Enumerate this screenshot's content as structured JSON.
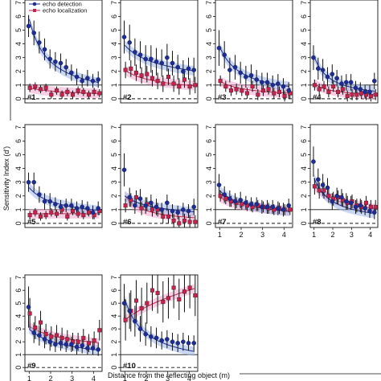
{
  "chart_data": {
    "type": "scatter",
    "xlabel": "Distance from the reflecting object (m)",
    "ylabel": "Sensitivity Index (d')",
    "xlim": [
      0.8,
      4.4
    ],
    "ylim": [
      -0.3,
      7.2
    ],
    "xticks": [
      1,
      2,
      3,
      4
    ],
    "yticks": [
      0,
      1,
      2,
      3,
      4,
      5,
      6,
      7
    ],
    "reference_lines": {
      "solid": 1,
      "dashed": 0
    },
    "legend": {
      "placement": "top, inside first panel",
      "entries": [
        {
          "label": "echo detection",
          "color": "#1f2d8f"
        },
        {
          "label": "echo localization",
          "color": "#c2264f"
        }
      ]
    },
    "colors": {
      "detection": "#1f2d8f",
      "detection_band": "#9fb6ea",
      "localization": "#c2264f",
      "localization_band": "#f2a9cf"
    },
    "distances": [
      1.0,
      1.25,
      1.5,
      1.75,
      2.0,
      2.25,
      2.5,
      2.75,
      3.0,
      3.25,
      3.5,
      3.75,
      4.0,
      4.25
    ],
    "panels": [
      {
        "label": "#1",
        "detection": [
          5.3,
          4.8,
          4.1,
          3.6,
          2.9,
          2.7,
          2.6,
          2.3,
          1.9,
          1.6,
          1.3,
          1.5,
          1.3,
          1.4
        ],
        "detection_err": [
          0.8,
          0.9,
          0.8,
          0.8,
          0.7,
          0.7,
          0.7,
          0.6,
          0.6,
          0.6,
          0.5,
          0.6,
          0.5,
          0.6
        ],
        "detection_fit": {
          "a": 5.8,
          "b": 1.1
        },
        "localization": [
          0.8,
          0.9,
          0.7,
          0.8,
          0.3,
          0.6,
          0.3,
          0.5,
          0.3,
          0.6,
          0.5,
          0.3,
          0.5,
          0.4
        ],
        "localization_err": [
          0.3,
          0.3,
          0.3,
          0.3,
          0.3,
          0.3,
          0.3,
          0.3,
          0.3,
          0.3,
          0.3,
          0.3,
          0.3,
          0.3
        ],
        "localization_fit": {
          "a": 0.8,
          "b": 0.5
        }
      },
      {
        "label": "#2",
        "detection": [
          4.5,
          4.1,
          3.4,
          3.2,
          2.9,
          2.9,
          2.7,
          2.6,
          3.0,
          2.6,
          2.3,
          2.0,
          2.2,
          2.1
        ],
        "detection_err": [
          1.2,
          1.3,
          1.0,
          1.0,
          1.0,
          1.0,
          1.0,
          1.0,
          1.0,
          0.9,
          0.9,
          0.8,
          0.8,
          0.9
        ],
        "detection_fit": {
          "a": 3.9,
          "b": 0.45
        },
        "localization": [
          2.1,
          2.2,
          1.9,
          1.7,
          1.8,
          1.5,
          1.3,
          1.1,
          1.6,
          1.1,
          0.9,
          1.4,
          0.9,
          1.0
        ],
        "localization_err": [
          0.6,
          0.6,
          0.6,
          0.6,
          0.6,
          0.6,
          0.6,
          0.6,
          0.6,
          0.6,
          0.6,
          0.6,
          0.6,
          0.6
        ],
        "localization_fit": {
          "a": 2.1,
          "b": 0.55
        }
      },
      {
        "label": "#3",
        "detection": [
          3.7,
          3.2,
          2.1,
          2.3,
          1.9,
          1.6,
          1.7,
          1.4,
          1.2,
          1.2,
          1.0,
          1.1,
          0.9,
          0.6
        ],
        "detection_err": [
          1.3,
          1.0,
          0.9,
          0.9,
          0.8,
          0.8,
          0.8,
          0.7,
          0.7,
          0.7,
          0.7,
          0.7,
          0.6,
          0.6
        ],
        "detection_fit": {
          "a": 3.8,
          "b": 1.0
        },
        "localization": [
          1.3,
          0.9,
          0.6,
          0.7,
          0.6,
          0.4,
          0.9,
          0.3,
          0.6,
          0.7,
          0.4,
          0.5,
          0.2,
          0.4
        ],
        "localization_err": [
          0.4,
          0.4,
          0.4,
          0.4,
          0.4,
          0.4,
          0.4,
          0.4,
          0.4,
          0.4,
          0.4,
          0.4,
          0.4,
          0.4
        ],
        "localization_fit": {
          "a": 1.3,
          "b": 0.8
        }
      },
      {
        "label": "#4",
        "detection": [
          3.0,
          2.2,
          2.1,
          1.6,
          1.8,
          1.5,
          1.1,
          1.2,
          1.2,
          0.8,
          0.7,
          0.5,
          0.5,
          1.3
        ],
        "detection_err": [
          0.9,
          0.8,
          0.8,
          0.7,
          0.7,
          0.6,
          0.6,
          0.6,
          0.6,
          0.5,
          0.5,
          0.5,
          0.5,
          0.6
        ],
        "detection_fit": {
          "a": 3.1,
          "b": 1.2
        },
        "localization": [
          1.0,
          0.7,
          0.9,
          0.5,
          0.9,
          0.5,
          0.7,
          0.2,
          0.3,
          0.3,
          0.4,
          0.3,
          0.2,
          0.3
        ],
        "localization_err": [
          0.4,
          0.4,
          0.4,
          0.4,
          0.4,
          0.4,
          0.4,
          0.4,
          0.4,
          0.4,
          0.4,
          0.4,
          0.4,
          0.4
        ],
        "localization_fit": {
          "a": 1.1,
          "b": 0.9
        }
      },
      {
        "label": "#5",
        "detection": [
          3.0,
          3.0,
          2.1,
          1.6,
          1.6,
          1.4,
          1.2,
          1.3,
          1.3,
          1.1,
          1.2,
          1.1,
          0.8,
          1.1
        ],
        "detection_err": [
          0.7,
          0.7,
          0.6,
          0.6,
          0.6,
          0.5,
          0.5,
          0.5,
          0.5,
          0.5,
          0.5,
          0.5,
          0.5,
          0.5
        ],
        "detection_fit": {
          "a": 2.6,
          "b": 0.7
        },
        "localization": [
          0.6,
          0.8,
          0.5,
          0.6,
          0.8,
          0.7,
          1.0,
          0.5,
          0.9,
          0.7,
          0.6,
          0.8,
          0.6,
          0.9
        ],
        "localization_err": [
          0.3,
          0.3,
          0.3,
          0.3,
          0.3,
          0.3,
          0.3,
          0.3,
          0.3,
          0.3,
          0.3,
          0.3,
          0.3,
          0.3
        ],
        "localization_fit": {
          "a": 0.7,
          "b": 0.0
        }
      },
      {
        "label": "#6",
        "detection": [
          3.9,
          1.9,
          1.3,
          1.8,
          1.3,
          1.5,
          1.2,
          1.0,
          1.5,
          0.9,
          0.8,
          1.0,
          0.9,
          1.2
        ],
        "detection_err": [
          1.2,
          0.7,
          0.6,
          0.7,
          0.6,
          0.6,
          0.6,
          0.5,
          0.6,
          0.5,
          0.5,
          0.5,
          0.5,
          0.6
        ],
        "detection_fit": {
          "a": 2.0,
          "b": 0.6
        },
        "localization": [
          1.3,
          1.7,
          1.9,
          1.1,
          1.4,
          1.0,
          1.0,
          0.5,
          0.5,
          0.2,
          0.0,
          0.2,
          0.1,
          0.1
        ],
        "localization_err": [
          0.5,
          0.5,
          0.5,
          0.5,
          0.5,
          0.5,
          0.5,
          0.5,
          0.5,
          0.5,
          0.5,
          0.5,
          0.5,
          0.5
        ],
        "localization_fit": {
          "a": 2.0,
          "b": 1.1
        }
      },
      {
        "label": "#7",
        "detection": [
          2.8,
          2.1,
          1.8,
          1.6,
          1.7,
          1.5,
          1.4,
          1.4,
          1.2,
          1.2,
          1.2,
          1.1,
          1.0,
          1.3
        ],
        "detection_err": [
          0.8,
          0.6,
          0.6,
          0.6,
          0.6,
          0.5,
          0.5,
          0.5,
          0.5,
          0.5,
          0.5,
          0.5,
          0.5,
          0.5
        ],
        "detection_fit": {
          "a": 2.4,
          "b": 0.7
        },
        "localization": [
          2.0,
          1.8,
          1.6,
          1.5,
          1.4,
          1.3,
          1.2,
          1.3,
          1.2,
          1.1,
          1.0,
          1.1,
          1.0,
          1.0
        ],
        "localization_err": [
          0.4,
          0.4,
          0.4,
          0.4,
          0.4,
          0.4,
          0.4,
          0.4,
          0.4,
          0.4,
          0.4,
          0.4,
          0.4,
          0.4
        ],
        "localization_fit": {
          "a": 1.9,
          "b": 0.5
        }
      },
      {
        "label": "#8",
        "detection": [
          4.5,
          3.2,
          2.8,
          2.6,
          1.6,
          2.0,
          1.9,
          1.6,
          1.5,
          1.2,
          1.3,
          1.1,
          0.9,
          0.8
        ],
        "detection_err": [
          1.1,
          0.8,
          0.8,
          0.7,
          0.6,
          0.6,
          0.6,
          0.6,
          0.5,
          0.5,
          0.5,
          0.5,
          0.5,
          0.5
        ],
        "detection_fit": {
          "a": 3.3,
          "b": 1.05
        },
        "localization": [
          2.7,
          2.4,
          2.4,
          2.0,
          1.8,
          1.9,
          1.7,
          1.5,
          1.6,
          1.3,
          1.2,
          1.5,
          1.2,
          1.2
        ],
        "localization_err": [
          0.6,
          0.6,
          0.6,
          0.5,
          0.5,
          0.5,
          0.5,
          0.5,
          0.5,
          0.5,
          0.5,
          0.5,
          0.5,
          0.5
        ],
        "localization_fit": {
          "a": 2.8,
          "b": 0.65
        }
      },
      {
        "label": "#9",
        "detection": [
          4.7,
          2.7,
          2.5,
          2.2,
          2.0,
          1.8,
          1.9,
          1.8,
          1.8,
          1.6,
          1.7,
          1.5,
          1.5,
          1.4
        ],
        "detection_err": [
          1.6,
          0.8,
          0.8,
          0.7,
          0.7,
          0.6,
          0.6,
          0.6,
          0.6,
          0.6,
          0.6,
          0.5,
          0.5,
          0.5
        ],
        "detection_fit": {
          "a": 3.0,
          "b": 0.55
        },
        "localization": [
          4.2,
          3.1,
          3.5,
          2.6,
          2.4,
          2.5,
          2.3,
          2.2,
          2.0,
          2.0,
          2.3,
          1.9,
          2.1,
          2.9
        ],
        "localization_err": [
          1.2,
          0.9,
          0.9,
          0.8,
          0.8,
          0.8,
          0.8,
          0.7,
          0.7,
          0.7,
          0.7,
          0.7,
          0.7,
          0.8
        ],
        "localization_fit": {
          "a": 3.2,
          "b": 0.35
        }
      },
      {
        "label": "#10",
        "detection": [
          5.0,
          4.4,
          3.6,
          3.0,
          2.6,
          2.4,
          2.3,
          2.1,
          2.2,
          2.0,
          1.9,
          2.0,
          1.9,
          1.9
        ],
        "detection_err": [
          1.5,
          1.4,
          1.2,
          1.0,
          0.9,
          0.8,
          0.8,
          0.7,
          0.7,
          0.7,
          0.7,
          0.7,
          0.6,
          0.6
        ],
        "detection_fit": {
          "a": 5.3,
          "b": 1.0
        },
        "localization": [
          3.7,
          4.4,
          5.2,
          4.6,
          5.0,
          6.0,
          5.8,
          5.1,
          5.4,
          6.2,
          5.3,
          5.9,
          6.2,
          5.6
        ],
        "localization_err": [
          1.6,
          1.6,
          1.6,
          1.6,
          1.6,
          1.6,
          1.6,
          1.6,
          1.6,
          1.6,
          1.6,
          1.6,
          1.6,
          1.6
        ],
        "localization_fit": {
          "a": 3.7,
          "b": -0.35
        }
      }
    ]
  }
}
